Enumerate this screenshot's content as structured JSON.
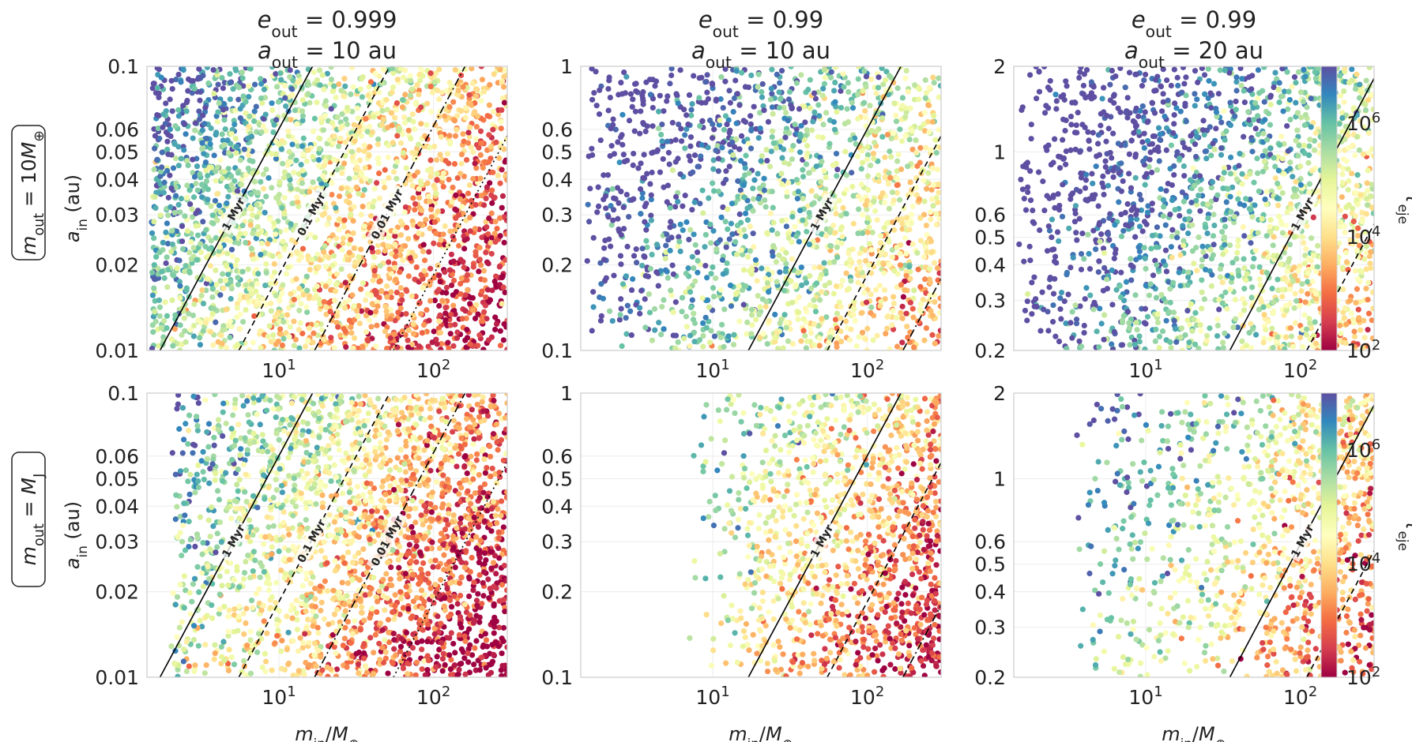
{
  "figure": {
    "column_titles": [
      {
        "line1": "e_out = 0.999",
        "line2": "a_out = 10 au"
      },
      {
        "line1": "e_out = 0.99",
        "line2": "a_out = 10 au"
      },
      {
        "line1": "e_out = 0.99",
        "line2": "a_out = 20 au"
      }
    ],
    "row_labels": [
      "m_out = 10M⊕",
      "m_out = M_J"
    ],
    "colorbar": {
      "label": "τ_eje",
      "ticks": [
        "10^2",
        "10^4",
        "10^6"
      ],
      "range": [
        100,
        10000000
      ],
      "cmap": "Spectral"
    }
  },
  "chart_data": [
    {
      "type": "scatter",
      "row": 0,
      "col": 0,
      "xscale": "log",
      "yscale": "log",
      "xlim": [
        1.4,
        300
      ],
      "ylim": [
        0.01,
        0.1
      ],
      "xlabel": "",
      "ylabel": "a_in (au)",
      "xticks": [
        "10^1",
        "10^2"
      ],
      "yticks": [
        "0.01",
        "0.02",
        "0.03",
        "0.04",
        "0.05",
        "0.06",
        "0.1"
      ],
      "n_points": 2600,
      "x_min": 1.5,
      "density": "dense",
      "color_shift": 0.0,
      "marker_color": "tau_eje",
      "contours": [
        {
          "label": "1 Myr",
          "style": "solid",
          "x_at_ymin": 1.7,
          "x_at_ymax": 16.5
        },
        {
          "label": "0.1 Myr",
          "style": "dashed",
          "x_at_ymin": 5.5,
          "x_at_ymax": 52
        },
        {
          "label": "0.01 Myr",
          "style": "dashdot",
          "x_at_ymin": 17,
          "x_at_ymax": 160
        },
        {
          "label": "",
          "style": "dotted",
          "x_at_ymin": 55,
          "x_at_ymax": 520
        }
      ]
    },
    {
      "type": "scatter",
      "row": 0,
      "col": 1,
      "xscale": "log",
      "yscale": "log",
      "xlim": [
        1.4,
        300
      ],
      "ylim": [
        0.1,
        1
      ],
      "xlabel": "",
      "ylabel": "",
      "xticks": [
        "10^1",
        "10^2"
      ],
      "yticks": [
        "0.1",
        "0.2",
        "0.3",
        "0.4",
        "0.5",
        "0.6",
        "1"
      ],
      "n_points": 1700,
      "x_min": 1.5,
      "density": "sparse-left",
      "color_shift": 1.3,
      "marker_color": "tau_eje",
      "contours": [
        {
          "label": "1 Myr",
          "style": "solid",
          "x_at_ymin": 17,
          "x_at_ymax": 165
        },
        {
          "label": "",
          "style": "dashed",
          "x_at_ymin": 55,
          "x_at_ymax": 520
        },
        {
          "label": "",
          "style": "dashdot",
          "x_at_ymin": 170,
          "x_at_ymax": 1600
        }
      ]
    },
    {
      "type": "scatter",
      "row": 0,
      "col": 2,
      "xscale": "log",
      "yscale": "log",
      "xlim": [
        1.4,
        300
      ],
      "ylim": [
        0.2,
        2
      ],
      "xlabel": "",
      "ylabel": "",
      "xticks": [
        "10^1",
        "10^2"
      ],
      "yticks": [
        "0.2",
        "0.3",
        "0.4",
        "0.5",
        "0.6",
        "1",
        "2"
      ],
      "n_points": 1800,
      "x_min": 1.5,
      "density": "sparse-left",
      "color_shift": 1.7,
      "marker_color": "tau_eje",
      "contours": [
        {
          "label": "1 Myr",
          "style": "solid",
          "x_at_ymin": 35,
          "x_at_ymax": 330
        },
        {
          "label": "",
          "style": "dashed",
          "x_at_ymin": 110,
          "x_at_ymax": 1050
        },
        {
          "label": "",
          "style": "dashdot",
          "x_at_ymin": 350,
          "x_at_ymax": 3300
        }
      ]
    },
    {
      "type": "scatter",
      "row": 1,
      "col": 0,
      "xscale": "log",
      "yscale": "log",
      "xlim": [
        1.4,
        300
      ],
      "ylim": [
        0.01,
        0.1
      ],
      "xlabel": "m_in/M⊕",
      "ylabel": "a_in (au)",
      "xticks": [
        "10^1",
        "10^2"
      ],
      "yticks": [
        "0.01",
        "0.02",
        "0.03",
        "0.04",
        "0.05",
        "0.06",
        "0.1"
      ],
      "n_points": 2400,
      "x_min": 2.0,
      "density": "sparse-left",
      "color_shift": -0.3,
      "marker_color": "tau_eje",
      "contours": [
        {
          "label": "1 Myr",
          "style": "solid",
          "x_at_ymin": 1.7,
          "x_at_ymax": 16.5
        },
        {
          "label": "0.1 Myr",
          "style": "dashed",
          "x_at_ymin": 5.5,
          "x_at_ymax": 52
        },
        {
          "label": "0.01 Myr",
          "style": "dashdot",
          "x_at_ymin": 17,
          "x_at_ymax": 160
        },
        {
          "label": "",
          "style": "dotted",
          "x_at_ymin": 55,
          "x_at_ymax": 520
        }
      ]
    },
    {
      "type": "scatter",
      "row": 1,
      "col": 1,
      "xscale": "log",
      "yscale": "log",
      "xlim": [
        1.4,
        300
      ],
      "ylim": [
        0.1,
        1
      ],
      "xlabel": "m_in/M⊕",
      "ylabel": "",
      "xticks": [
        "10^1",
        "10^2"
      ],
      "yticks": [
        "0.1",
        "0.2",
        "0.3",
        "0.4",
        "0.5",
        "0.6",
        "1"
      ],
      "n_points": 1300,
      "x_min": 7.0,
      "density": "right-heavy",
      "color_shift": 0.2,
      "marker_color": "tau_eje",
      "contours": [
        {
          "label": "1 Myr",
          "style": "solid",
          "x_at_ymin": 17,
          "x_at_ymax": 165
        },
        {
          "label": "",
          "style": "dashed",
          "x_at_ymin": 55,
          "x_at_ymax": 520
        },
        {
          "label": "",
          "style": "dashdot",
          "x_at_ymin": 170,
          "x_at_ymax": 1600
        }
      ]
    },
    {
      "type": "scatter",
      "row": 1,
      "col": 2,
      "xscale": "log",
      "yscale": "log",
      "xlim": [
        1.4,
        300
      ],
      "ylim": [
        0.2,
        2
      ],
      "xlabel": "m_in/M⊕",
      "ylabel": "",
      "xticks": [
        "10^1",
        "10^2"
      ],
      "yticks": [
        "0.2",
        "0.3",
        "0.4",
        "0.5",
        "0.6",
        "1",
        "2"
      ],
      "n_points": 1100,
      "x_min": 3.0,
      "density": "right-heavy",
      "color_shift": 0.6,
      "marker_color": "tau_eje",
      "contours": [
        {
          "label": "1 Myr",
          "style": "solid",
          "x_at_ymin": 35,
          "x_at_ymax": 330
        },
        {
          "label": "",
          "style": "dashed",
          "x_at_ymin": 110,
          "x_at_ymax": 1050
        },
        {
          "label": "",
          "style": "dashdot",
          "x_at_ymin": 350,
          "x_at_ymax": 3300
        }
      ]
    }
  ]
}
